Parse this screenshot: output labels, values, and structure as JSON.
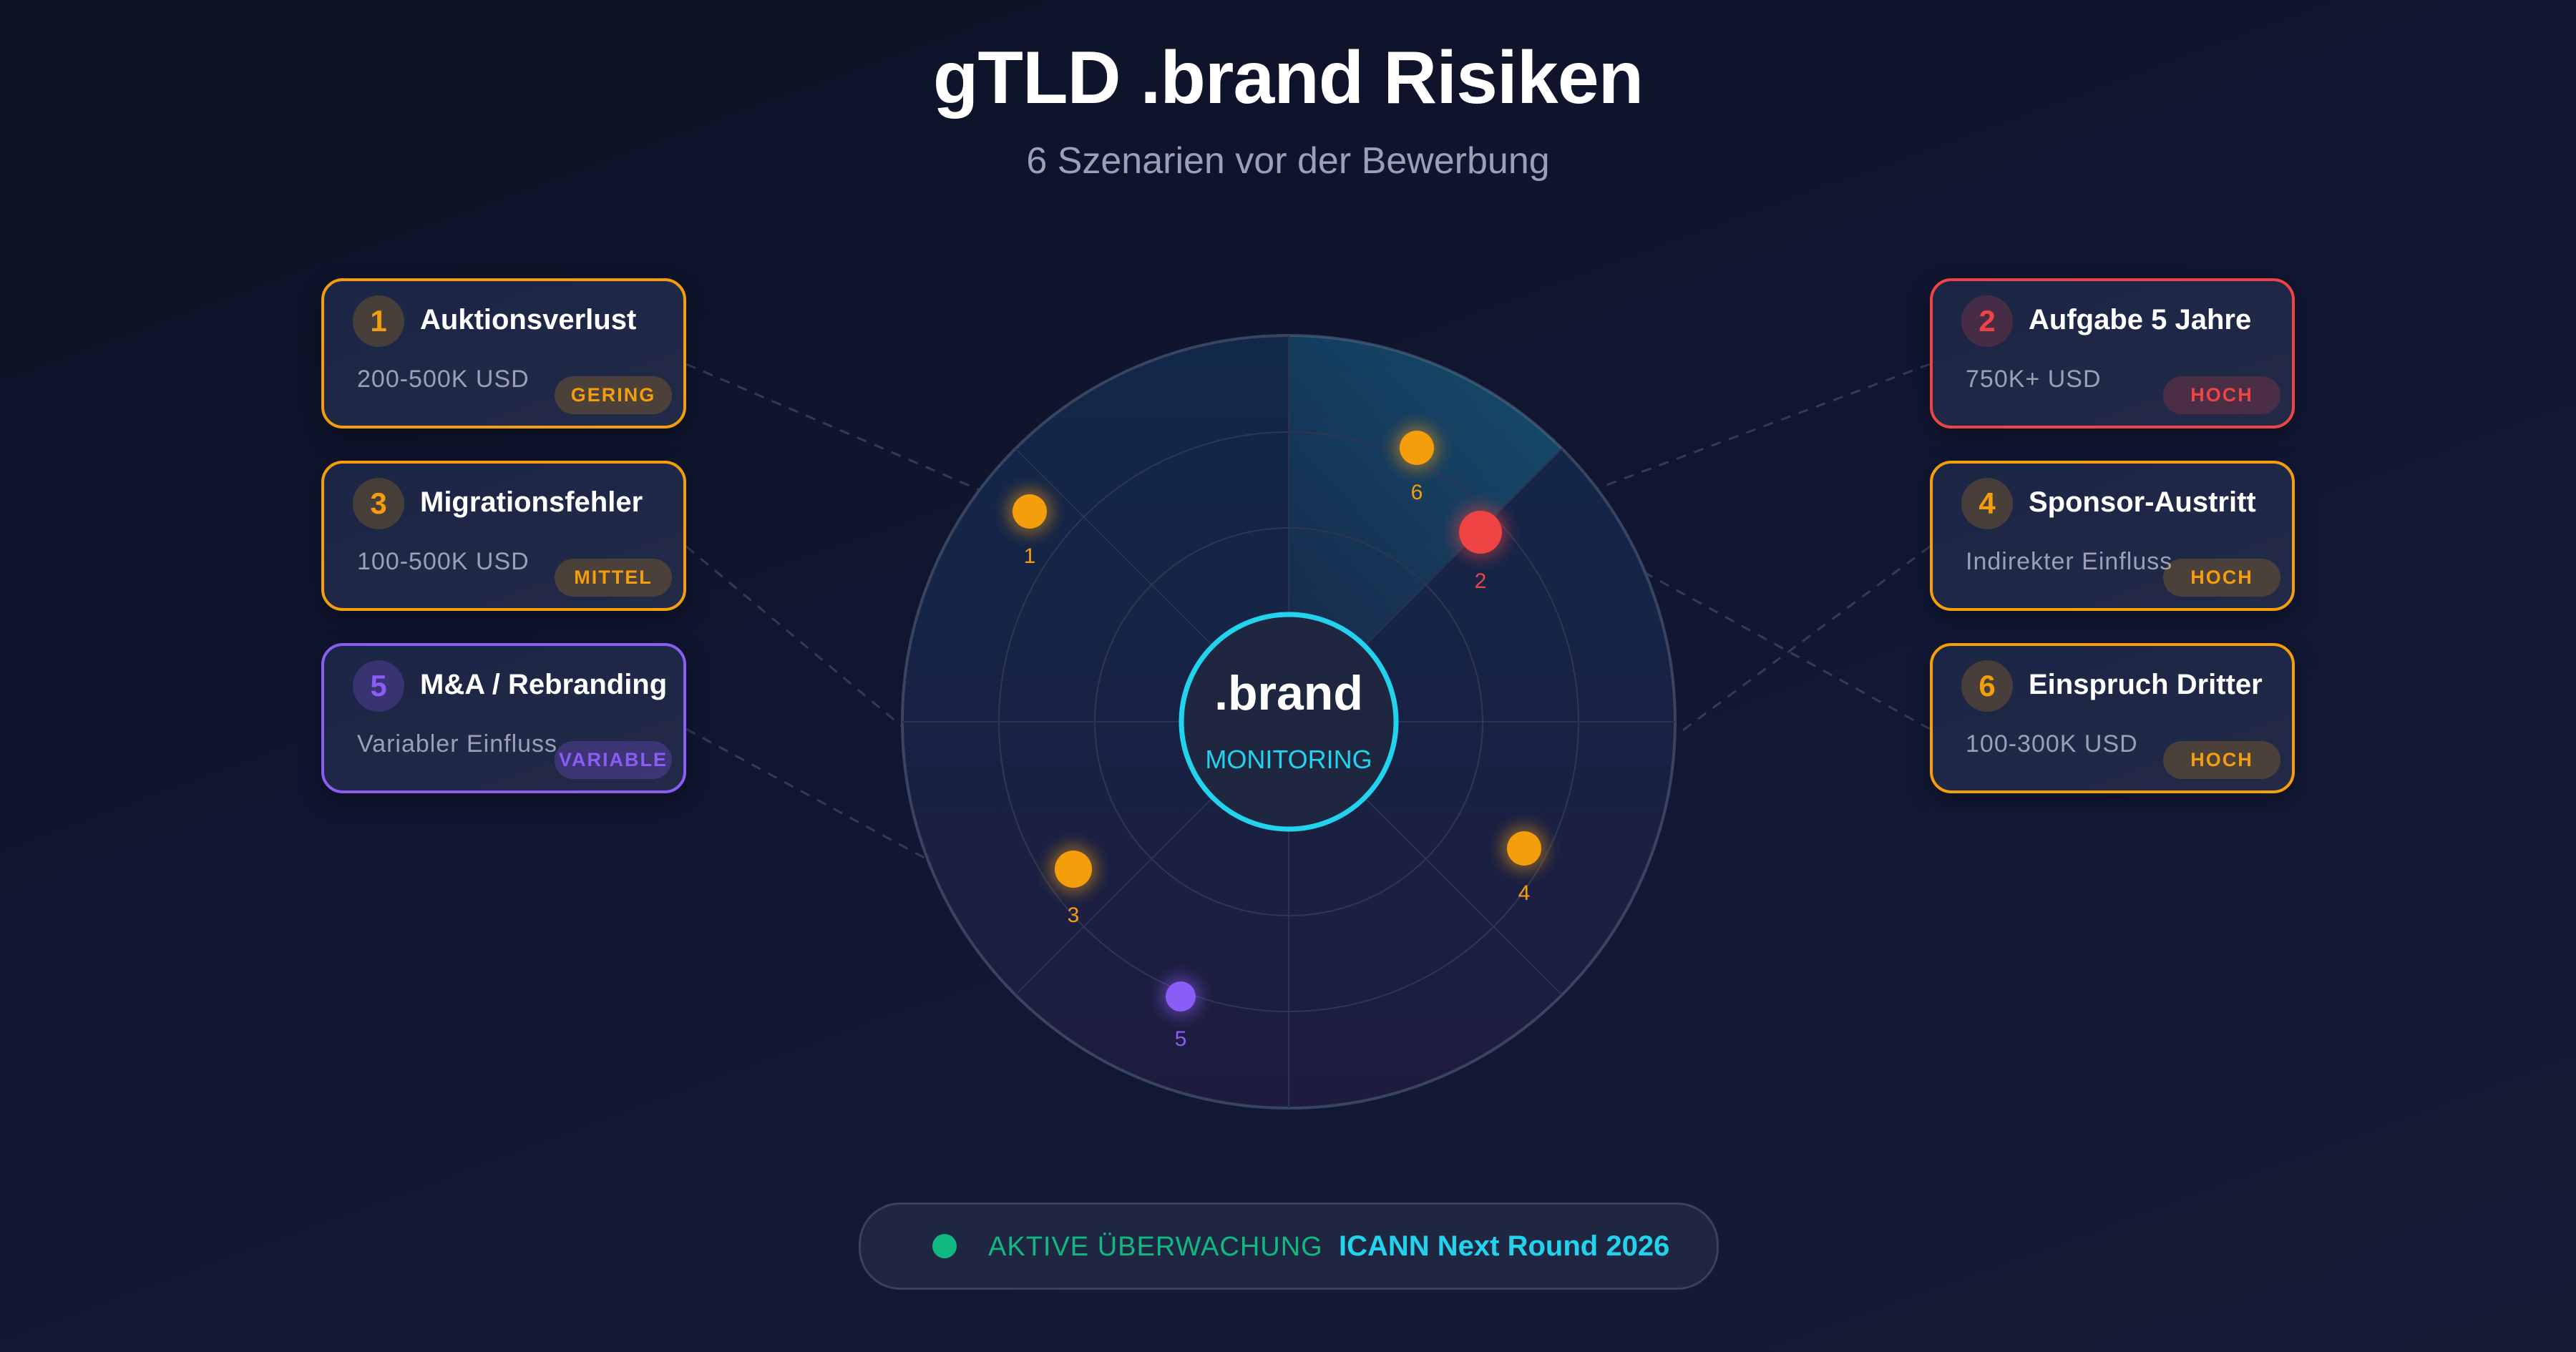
{
  "header": {
    "title": "gTLD .brand Risiken",
    "subtitle": "6 Szenarien vor der Bewerbung"
  },
  "center": {
    "label": ".brand",
    "sublabel": "MONITORING"
  },
  "colors": {
    "accent": "#22d3ee",
    "medium": "#f59e0b",
    "high": "#ef4444",
    "variable": "#8b5cf6",
    "active": "#10b981"
  },
  "risks": [
    {
      "num": "1",
      "name": "Auktionsverlust",
      "detail": "200-500K USD",
      "level": "GERING",
      "color": "orange"
    },
    {
      "num": "2",
      "name": "Aufgabe 5 Jahre",
      "detail": "750K+ USD",
      "level": "HOCH",
      "color": "red"
    },
    {
      "num": "3",
      "name": "Migrationsfehler",
      "detail": "100-500K USD",
      "level": "MITTEL",
      "color": "orange"
    },
    {
      "num": "4",
      "name": "Sponsor-Austritt",
      "detail": "Indirekter Einfluss",
      "level": "HOCH",
      "color": "orange"
    },
    {
      "num": "5",
      "name": "M&A / Rebranding",
      "detail": "Variabler Einfluss",
      "level": "VARIABLE",
      "color": "purple"
    },
    {
      "num": "6",
      "name": "Einspruch Dritter",
      "detail": "100-300K USD",
      "level": "HOCH",
      "color": "orange"
    }
  ],
  "footer": {
    "status": "AKTIVE ÜBERWACHUNG",
    "round": "ICANN Next Round 2026"
  }
}
